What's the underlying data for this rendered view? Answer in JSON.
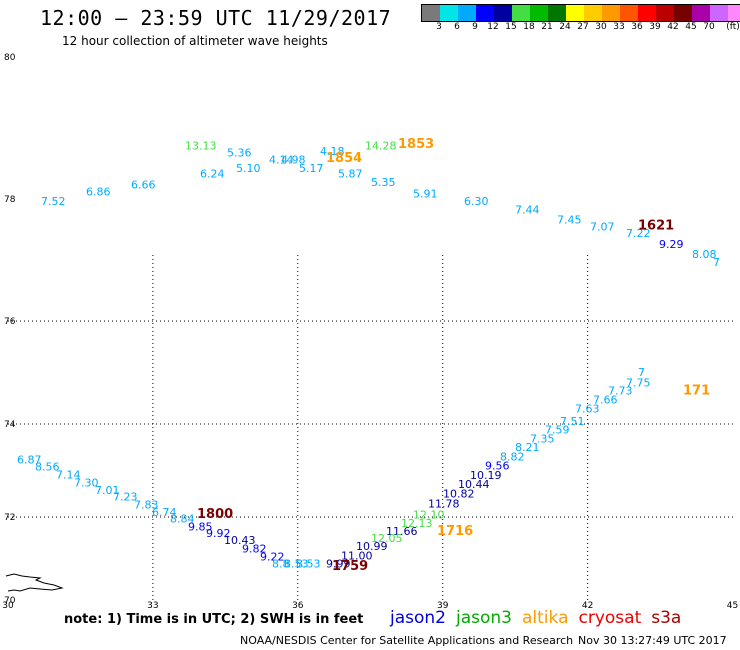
{
  "header": {
    "title": "12:00 — 23:59 UTC 11/29/2017",
    "subtitle": "12 hour collection of altimeter wave heights"
  },
  "colorbar": {
    "colors": [
      "#7a7a7a",
      "#00e5e5",
      "#00aaff",
      "#0000ff",
      "#0000a0",
      "#44dd44",
      "#00bb00",
      "#007700",
      "#ffff00",
      "#ffcc00",
      "#ff9900",
      "#ff5500",
      "#ff0000",
      "#bb0000",
      "#770000",
      "#aa00aa",
      "#cc66ff",
      "#ff88ff",
      "#000000"
    ],
    "labels": [
      "3",
      "6",
      "9",
      "12",
      "15",
      "18",
      "21",
      "24",
      "27",
      "30",
      "33",
      "36",
      "39",
      "42",
      "45",
      "70",
      "(ft)"
    ]
  },
  "axes": {
    "lat_labels": [
      {
        "text": "80",
        "v": 80
      },
      {
        "text": "78",
        "v": 78
      },
      {
        "text": "76",
        "v": 76
      },
      {
        "text": "74",
        "v": 74
      },
      {
        "text": "72",
        "v": 72
      },
      {
        "text": "70",
        "v": 70
      }
    ],
    "lon_labels": [
      {
        "text": "30",
        "v": 30
      },
      {
        "text": "33",
        "v": 33
      },
      {
        "text": "36",
        "v": 36
      },
      {
        "text": "39",
        "v": 39
      },
      {
        "text": "42",
        "v": 42
      },
      {
        "text": "45",
        "v": 45
      }
    ]
  },
  "observations": [
    {
      "t": "13.13",
      "x": 29.9,
      "y": 78.7,
      "c": "#44dd44"
    },
    {
      "t": "5.36",
      "x": 31.3,
      "y": 78.6,
      "c": "#00aaff"
    },
    {
      "t": "14.28",
      "x": 35.9,
      "y": 78.7,
      "c": "#44dd44"
    },
    {
      "t": "4.18",
      "x": 34.4,
      "y": 78.62,
      "c": "#00aaff"
    },
    {
      "t": "4.14",
      "x": 32.7,
      "y": 78.5,
      "c": "#00aaff"
    },
    {
      "t": "4.98",
      "x": 33.1,
      "y": 78.5,
      "c": "#00aaff"
    },
    {
      "t": "5.10",
      "x": 31.6,
      "y": 78.38,
      "c": "#00aaff"
    },
    {
      "t": "5.17",
      "x": 33.7,
      "y": 78.38,
      "c": "#00aaff"
    },
    {
      "t": "6.24",
      "x": 30.4,
      "y": 78.3,
      "c": "#00aaff"
    },
    {
      "t": "5.87",
      "x": 35.0,
      "y": 78.3,
      "c": "#00aaff"
    },
    {
      "t": "6.66",
      "x": 28.1,
      "y": 78.15,
      "c": "#00aaff"
    },
    {
      "t": "5.35",
      "x": 36.1,
      "y": 78.18,
      "c": "#00aaff"
    },
    {
      "t": "6.86",
      "x": 26.6,
      "y": 78.05,
      "c": "#00aaff"
    },
    {
      "t": "5.91",
      "x": 37.5,
      "y": 78.02,
      "c": "#00aaff"
    },
    {
      "t": "7.52",
      "x": 25.1,
      "y": 77.9,
      "c": "#00aaff"
    },
    {
      "t": "6.30",
      "x": 39.2,
      "y": 77.9,
      "c": "#00aaff"
    },
    {
      "t": "7.44",
      "x": 40.9,
      "y": 77.76,
      "c": "#00aaff"
    },
    {
      "t": "7.45",
      "x": 42.3,
      "y": 77.6,
      "c": "#00aaff"
    },
    {
      "t": "7.07",
      "x": 43.4,
      "y": 77.48,
      "c": "#00aaff"
    },
    {
      "t": "7.22",
      "x": 44.6,
      "y": 77.38,
      "c": "#00aaff"
    },
    {
      "t": "9.29",
      "x": 45.7,
      "y": 77.2,
      "c": "#0000ff"
    },
    {
      "t": "8.08",
      "x": 46.8,
      "y": 77.03,
      "c": "#00aaff"
    },
    {
      "t": "7",
      "x": 47.5,
      "y": 76.9,
      "c": "#00aaff"
    },
    {
      "t": "7",
      "x": 45.0,
      "y": 74.93,
      "c": "#00aaff"
    },
    {
      "t": "7.75",
      "x": 44.6,
      "y": 74.73,
      "c": "#00aaff"
    },
    {
      "t": "7.73",
      "x": 44.0,
      "y": 74.57,
      "c": "#00aaff"
    },
    {
      "t": "7.66",
      "x": 43.5,
      "y": 74.4,
      "c": "#00aaff"
    },
    {
      "t": "7.63",
      "x": 42.9,
      "y": 74.22,
      "c": "#00aaff"
    },
    {
      "t": "7.51",
      "x": 42.4,
      "y": 73.98,
      "c": "#00aaff"
    },
    {
      "t": "7.59",
      "x": 41.9,
      "y": 73.8,
      "c": "#00aaff"
    },
    {
      "t": "7.35",
      "x": 41.4,
      "y": 73.6,
      "c": "#00aaff"
    },
    {
      "t": "8.21",
      "x": 40.9,
      "y": 73.42,
      "c": "#00aaff"
    },
    {
      "t": "8.82",
      "x": 40.4,
      "y": 73.22,
      "c": "#00aaff"
    },
    {
      "t": "9.56",
      "x": 39.9,
      "y": 73.02,
      "c": "#0000ff"
    },
    {
      "t": "10.19",
      "x": 39.4,
      "y": 72.82,
      "c": "#0000a0"
    },
    {
      "t": "10.44",
      "x": 39.0,
      "y": 72.62,
      "c": "#0000a0"
    },
    {
      "t": "10.82",
      "x": 38.5,
      "y": 72.42,
      "c": "#0000a0"
    },
    {
      "t": "11.78",
      "x": 38.0,
      "y": 72.2,
      "c": "#0000a0"
    },
    {
      "t": "12.10",
      "x": 37.5,
      "y": 71.96,
      "c": "#44dd44"
    },
    {
      "t": "12.13",
      "x": 37.1,
      "y": 71.76,
      "c": "#44dd44"
    },
    {
      "t": "11.66",
      "x": 36.6,
      "y": 71.57,
      "c": "#0000a0"
    },
    {
      "t": "12.05",
      "x": 36.1,
      "y": 71.4,
      "c": "#44dd44"
    },
    {
      "t": "10.99",
      "x": 35.6,
      "y": 71.2,
      "c": "#0000a0"
    },
    {
      "t": "11.00",
      "x": 35.1,
      "y": 70.98,
      "c": "#0000a0"
    },
    {
      "t": "9.99",
      "x": 34.6,
      "y": 70.78,
      "c": "#0000a0"
    },
    {
      "t": "6.87",
      "x": 24.3,
      "y": 73.15,
      "c": "#00aaff"
    },
    {
      "t": "8.56",
      "x": 24.9,
      "y": 73.0,
      "c": "#00aaff"
    },
    {
      "t": "7.14",
      "x": 25.6,
      "y": 72.83,
      "c": "#00aaff"
    },
    {
      "t": "7.30",
      "x": 26.2,
      "y": 72.66,
      "c": "#00aaff"
    },
    {
      "t": "7.01",
      "x": 26.9,
      "y": 72.5,
      "c": "#00aaff"
    },
    {
      "t": "7.23",
      "x": 27.5,
      "y": 72.35,
      "c": "#00aaff"
    },
    {
      "t": "7.83",
      "x": 28.2,
      "y": 72.18,
      "c": "#00aaff"
    },
    {
      "t": "6.74",
      "x": 28.8,
      "y": 72.02,
      "c": "#00aaff"
    },
    {
      "t": "8.84",
      "x": 29.4,
      "y": 71.87,
      "c": "#00aaff"
    },
    {
      "t": "9.85",
      "x": 30.0,
      "y": 71.68,
      "c": "#0000ff"
    },
    {
      "t": "9.92",
      "x": 30.6,
      "y": 71.52,
      "c": "#0000ff"
    },
    {
      "t": "10.43",
      "x": 31.2,
      "y": 71.35,
      "c": "#0000a0"
    },
    {
      "t": "9.82",
      "x": 31.8,
      "y": 71.15,
      "c": "#0000ff"
    },
    {
      "t": "9.22",
      "x": 32.4,
      "y": 70.95,
      "c": "#0000ff"
    },
    {
      "t": "8.8",
      "x": 32.8,
      "y": 70.78,
      "c": "#00aaff"
    },
    {
      "t": "8.53",
      "x": 33.2,
      "y": 70.78,
      "c": "#00aaff"
    },
    {
      "t": "8.53",
      "x": 33.6,
      "y": 70.78,
      "c": "#00aaff"
    }
  ],
  "times": [
    {
      "t": "1853",
      "x": 37.0,
      "y": 78.72,
      "c": "#ff9900"
    },
    {
      "t": "1854",
      "x": 34.6,
      "y": 78.52,
      "c": "#ff9900"
    },
    {
      "t": "1621",
      "x": 45.0,
      "y": 77.5,
      "c": "#770000"
    },
    {
      "t": "171",
      "x": 46.5,
      "y": 74.57,
      "c": "#ff9900"
    },
    {
      "t": "1800",
      "x": 30.3,
      "y": 71.98,
      "c": "#770000"
    },
    {
      "t": "1716",
      "x": 38.3,
      "y": 71.57,
      "c": "#ff9900"
    },
    {
      "t": "1759",
      "x": 34.8,
      "y": 70.72,
      "c": "#770000"
    }
  ],
  "footer": {
    "note": "note: 1) Time is in UTC; 2) SWH is in feet",
    "satellites": [
      {
        "name": "jason2",
        "color": "#0000dd"
      },
      {
        "name": "jason3",
        "color": "#00aa00"
      },
      {
        "name": "altika",
        "color": "#ff9900"
      },
      {
        "name": "cryosat",
        "color": "#ee0000"
      },
      {
        "name": "s3a",
        "color": "#aa0000"
      }
    ],
    "credit": "NOAA/NESDIS Center for Satellite Applications and Research",
    "timestamp": "Nov 30 13:27:49 UTC 2017"
  }
}
